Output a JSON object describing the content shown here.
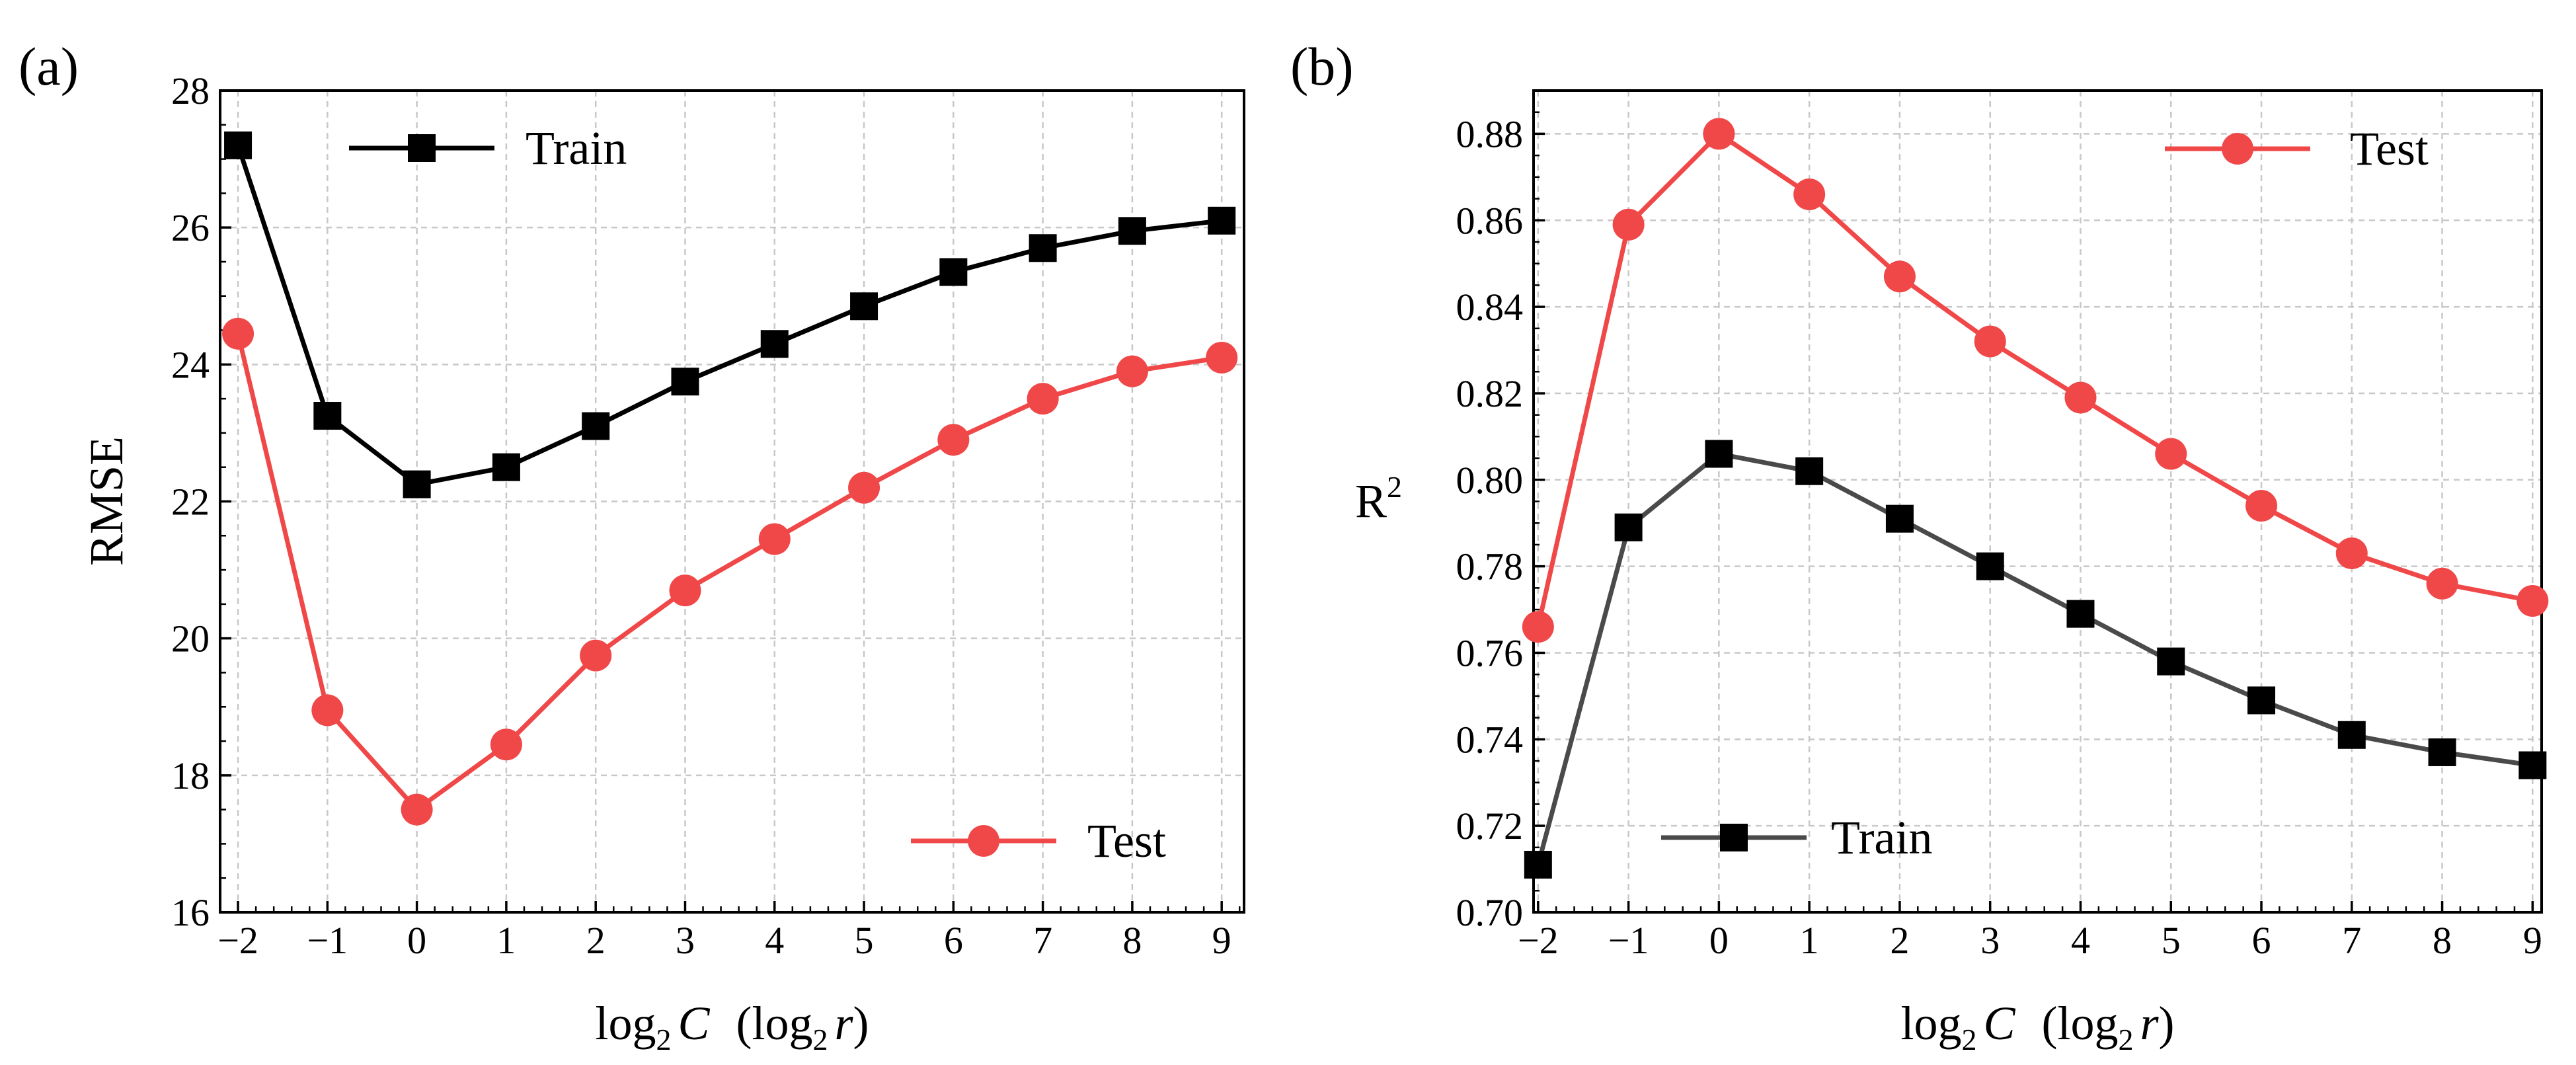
{
  "chart_data": [
    {
      "panel_label": "(a)",
      "type": "line",
      "x": [
        -2,
        -1,
        0,
        1,
        2,
        3,
        4,
        5,
        6,
        7,
        8,
        9
      ],
      "x_tick_labels": [
        "−2",
        "−1",
        "0",
        "1",
        "2",
        "3",
        "4",
        "5",
        "6",
        "7",
        "8",
        "9"
      ],
      "xlabel": {
        "log": "log",
        "sub": "2",
        "var": "C",
        "paren_open": "(log",
        "paren_sub": "2",
        "paren_var": "r",
        "paren_close": ")"
      },
      "ylabel": "RMSE",
      "ylim": [
        16,
        28
      ],
      "y_ticks": [
        16,
        18,
        20,
        22,
        24,
        26,
        28
      ],
      "y_tick_labels": [
        "16",
        "18",
        "20",
        "22",
        "24",
        "26",
        "28"
      ],
      "grid": true,
      "series": [
        {
          "name": "Train",
          "color": "#000000",
          "marker": "square",
          "legend_position": "top-left",
          "values": [
            27.2,
            23.25,
            22.25,
            22.5,
            23.1,
            23.75,
            24.3,
            24.85,
            25.35,
            25.7,
            25.95,
            26.1
          ]
        },
        {
          "name": "Test",
          "color": "#f04848",
          "marker": "circle",
          "legend_position": "bottom-right",
          "values": [
            24.45,
            18.95,
            17.5,
            18.45,
            19.75,
            20.7,
            21.45,
            22.2,
            22.9,
            23.5,
            23.9,
            24.1
          ]
        }
      ]
    },
    {
      "panel_label": "(b)",
      "type": "line",
      "x": [
        -2,
        -1,
        0,
        1,
        2,
        3,
        4,
        5,
        6,
        7,
        8,
        9
      ],
      "x_tick_labels": [
        "−2",
        "−1",
        "0",
        "1",
        "2",
        "3",
        "4",
        "5",
        "6",
        "7",
        "8",
        "9"
      ],
      "xlabel": {
        "log": "log",
        "sub": "2",
        "var": "C",
        "paren_open": "(log",
        "paren_sub": "2",
        "paren_var": "r",
        "paren_close": ")"
      },
      "ylabel": {
        "base": "R",
        "sup": "2"
      },
      "ylim": [
        0.7,
        0.89
      ],
      "y_ticks": [
        0.7,
        0.72,
        0.74,
        0.76,
        0.78,
        0.8,
        0.82,
        0.84,
        0.86,
        0.88
      ],
      "y_tick_labels": [
        "0.70",
        "0.72",
        "0.74",
        "0.76",
        "0.78",
        "0.80",
        "0.82",
        "0.84",
        "0.86",
        "0.88"
      ],
      "grid": true,
      "series": [
        {
          "name": "Test",
          "color": "#f04848",
          "marker": "circle",
          "legend_position": "top-right",
          "values": [
            0.766,
            0.859,
            0.88,
            0.866,
            0.847,
            0.832,
            0.819,
            0.806,
            0.794,
            0.783,
            0.776,
            0.772
          ]
        },
        {
          "name": "Train",
          "color": "#000000",
          "line_color": "#4a4a4a",
          "marker": "square",
          "legend_position": "bottom-left",
          "values": [
            0.711,
            0.789,
            0.806,
            0.802,
            0.791,
            0.78,
            0.769,
            0.758,
            0.749,
            0.741,
            0.737,
            0.734
          ]
        }
      ]
    }
  ]
}
